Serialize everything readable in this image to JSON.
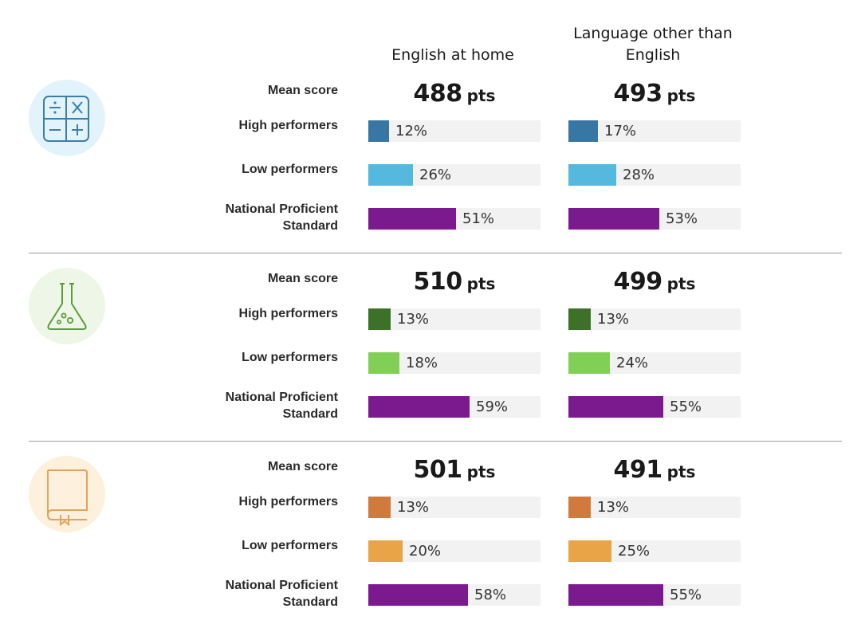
{
  "columns": {
    "english": "English at home",
    "other": "Language other than English"
  },
  "row_labels": {
    "mean": "Mean score",
    "high": "High performers",
    "low": "Low performers",
    "nps_line1": "National Proficient",
    "nps_line2": "Standard"
  },
  "units": {
    "pts": "pts"
  },
  "colors": {
    "track": "#f2f2f2",
    "nps": "#7b1a8e",
    "maths_high": "#3877a3",
    "maths_low": "#55b8de",
    "maths_circle": "#e3f3fb",
    "maths_icon": "#3b7fa8",
    "science_high": "#3d7128",
    "science_low": "#82cf56",
    "science_circle": "#eef7e7",
    "science_icon": "#5e9a3c",
    "reading_high": "#d07a3e",
    "reading_low": "#e8a447",
    "reading_circle": "#fdf0dc",
    "reading_icon": "#e2a458"
  },
  "chart_data": [
    {
      "type": "bar",
      "subject_icon": "calculator-icon",
      "categories": [
        "High performers",
        "Low performers",
        "National Proficient Standard"
      ],
      "series": [
        {
          "name": "English at home",
          "mean_score": 488,
          "values": [
            12,
            26,
            51
          ]
        },
        {
          "name": "Language other than English",
          "mean_score": 493,
          "values": [
            17,
            28,
            53
          ]
        }
      ],
      "ylim": [
        0,
        100
      ]
    },
    {
      "type": "bar",
      "subject_icon": "flask-icon",
      "categories": [
        "High performers",
        "Low performers",
        "National Proficient Standard"
      ],
      "series": [
        {
          "name": "English at home",
          "mean_score": 510,
          "values": [
            13,
            18,
            59
          ]
        },
        {
          "name": "Language other than English",
          "mean_score": 499,
          "values": [
            13,
            24,
            55
          ]
        }
      ],
      "ylim": [
        0,
        100
      ]
    },
    {
      "type": "bar",
      "subject_icon": "book-icon",
      "categories": [
        "High performers",
        "Low performers",
        "National Proficient Standard"
      ],
      "series": [
        {
          "name": "English at home",
          "mean_score": 501,
          "values": [
            13,
            20,
            58
          ]
        },
        {
          "name": "Language other than English",
          "mean_score": 491,
          "values": [
            13,
            25,
            55
          ]
        }
      ],
      "ylim": [
        0,
        100
      ]
    }
  ]
}
